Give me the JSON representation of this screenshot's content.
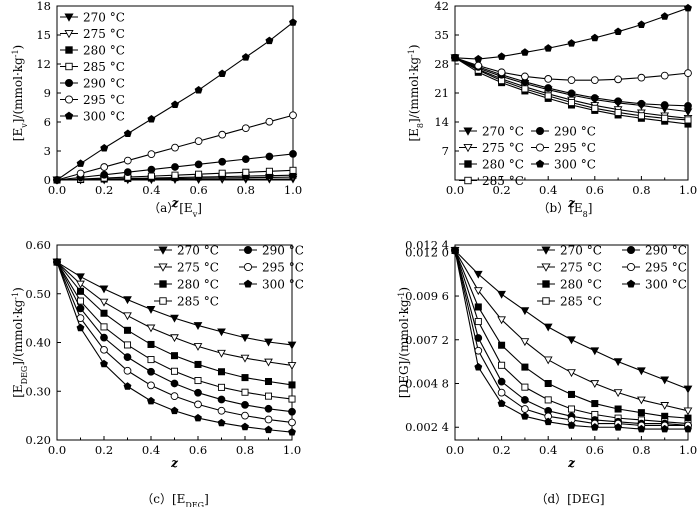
{
  "chart_data": [
    {
      "type": "line",
      "id": "a",
      "caption": "（a）[E",
      "caption_sub": "v",
      "caption_end": "]",
      "ylabel_main": "[E",
      "ylabel_sub": "v",
      "ylabel_units": "]/(mmol·kg",
      "ylabel_exp": "-1",
      "ylabel_close": ")",
      "xlabel": "z",
      "xlim": [
        0,
        1
      ],
      "ylim": [
        0,
        18
      ],
      "xticks": [
        "0.0",
        "0.2",
        "0.4",
        "0.6",
        "0.8",
        "1.0"
      ],
      "yticks": [
        "0",
        "3",
        "6",
        "9",
        "12",
        "15",
        "18"
      ],
      "ytick_values": [
        0,
        3,
        6,
        9,
        12,
        15,
        18
      ],
      "x": [
        0,
        0.1,
        0.2,
        0.3,
        0.4,
        0.5,
        0.6,
        0.7,
        0.8,
        0.9,
        1.0
      ],
      "series": [
        {
          "name": "270 °C",
          "marker": "triangle-down-filled",
          "values": [
            0,
            0.01,
            0.02,
            0.03,
            0.04,
            0.05,
            0.06,
            0.07,
            0.08,
            0.09,
            0.1
          ]
        },
        {
          "name": "275 °C",
          "marker": "triangle-down-open",
          "values": [
            0,
            0.03,
            0.06,
            0.09,
            0.12,
            0.15,
            0.18,
            0.21,
            0.24,
            0.27,
            0.3
          ]
        },
        {
          "name": "280 °C",
          "marker": "square-filled",
          "values": [
            0,
            0.05,
            0.1,
            0.15,
            0.2,
            0.25,
            0.3,
            0.35,
            0.4,
            0.45,
            0.5
          ]
        },
        {
          "name": "285 °C",
          "marker": "square-open",
          "values": [
            0,
            0.1,
            0.2,
            0.3,
            0.4,
            0.5,
            0.6,
            0.7,
            0.8,
            0.9,
            1.0
          ]
        },
        {
          "name": "290 °C",
          "marker": "circle-filled",
          "values": [
            0,
            0.27,
            0.54,
            0.81,
            1.08,
            1.35,
            1.62,
            1.89,
            2.16,
            2.43,
            2.7
          ]
        },
        {
          "name": "295 °C",
          "marker": "circle-open",
          "values": [
            0,
            0.67,
            1.34,
            2.01,
            2.68,
            3.35,
            4.02,
            4.69,
            5.36,
            6.03,
            6.7
          ]
        },
        {
          "name": "300 °C",
          "marker": "pentagon-filled",
          "values": [
            0,
            1.7,
            3.3,
            4.8,
            6.3,
            7.8,
            9.3,
            11.0,
            12.7,
            14.4,
            16.3
          ]
        }
      ],
      "legend": "top-left"
    },
    {
      "type": "line",
      "id": "b",
      "caption": "（b）[E",
      "caption_sub": "8",
      "caption_end": "]",
      "ylabel_main": "[E",
      "ylabel_sub": "8",
      "ylabel_units": "]/(mmol·kg",
      "ylabel_exp": "-1",
      "ylabel_close": ")",
      "xlabel": "z",
      "xlim": [
        0,
        1
      ],
      "ylim": [
        0,
        42
      ],
      "xticks": [
        "0.0",
        "0.2",
        "0.4",
        "0.6",
        "0.8",
        "1.0"
      ],
      "yticks": [
        "7",
        "14",
        "21",
        "28",
        "35",
        "42"
      ],
      "ytick_values": [
        7,
        14,
        21,
        28,
        35,
        42
      ],
      "x": [
        0,
        0.1,
        0.2,
        0.3,
        0.4,
        0.5,
        0.6,
        0.7,
        0.8,
        0.9,
        1.0
      ],
      "series": [
        {
          "name": "270 °C",
          "marker": "triangle-down-filled",
          "values": [
            29.5,
            27.0,
            25.0,
            23.3,
            21.8,
            20.5,
            19.4,
            18.6,
            18.0,
            17.2,
            16.5
          ]
        },
        {
          "name": "275 °C",
          "marker": "triangle-down-open",
          "values": [
            29.5,
            26.7,
            24.4,
            22.5,
            20.8,
            19.3,
            18.0,
            17.0,
            16.2,
            15.5,
            14.9
          ]
        },
        {
          "name": "280 °C",
          "marker": "square-filled",
          "values": [
            29.5,
            26.0,
            23.5,
            21.5,
            19.7,
            18.1,
            16.8,
            15.7,
            14.9,
            14.2,
            13.5
          ]
        },
        {
          "name": "285 °C",
          "marker": "square-open",
          "values": [
            29.5,
            26.5,
            24.0,
            22.0,
            20.3,
            18.7,
            17.3,
            16.3,
            15.5,
            14.9,
            14.5
          ]
        },
        {
          "name": "290 °C",
          "marker": "circle-filled",
          "values": [
            29.5,
            27.3,
            25.4,
            23.7,
            22.2,
            20.9,
            19.8,
            19.0,
            18.4,
            18.1,
            17.9
          ]
        },
        {
          "name": "295 °C",
          "marker": "circle-open",
          "values": [
            29.5,
            27.6,
            26.0,
            25.0,
            24.4,
            24.1,
            24.1,
            24.3,
            24.7,
            25.2,
            25.8
          ]
        },
        {
          "name": "300 °C",
          "marker": "pentagon-filled",
          "values": [
            29.5,
            29.2,
            29.8,
            30.8,
            31.8,
            33.0,
            34.3,
            35.8,
            37.5,
            39.5,
            41.5
          ]
        }
      ],
      "legend": "bottom-left"
    },
    {
      "type": "line",
      "id": "c",
      "caption": "（c）[E",
      "caption_sub": "DEG",
      "caption_end": "]",
      "ylabel_main": "[E",
      "ylabel_sub": "DEG",
      "ylabel_units": "]/(mmol·kg",
      "ylabel_exp": "-1",
      "ylabel_close": ")",
      "xlabel": "z",
      "xlim": [
        0,
        1
      ],
      "ylim": [
        0.2,
        0.6
      ],
      "xticks": [
        "0.0",
        "0.2",
        "0.4",
        "0.6",
        "0.8",
        "1.0"
      ],
      "yticks": [
        "0.20",
        "0.30",
        "0.40",
        "0.50",
        "0.60"
      ],
      "ytick_values": [
        0.2,
        0.3,
        0.4,
        0.5,
        0.6
      ],
      "x": [
        0,
        0.1,
        0.2,
        0.3,
        0.4,
        0.5,
        0.6,
        0.7,
        0.8,
        0.9,
        1.0
      ],
      "series": [
        {
          "name": "270 °C",
          "marker": "triangle-down-filled",
          "values": [
            0.565,
            0.535,
            0.51,
            0.488,
            0.468,
            0.45,
            0.435,
            0.422,
            0.41,
            0.401,
            0.395
          ]
        },
        {
          "name": "275 °C",
          "marker": "triangle-down-open",
          "values": [
            0.565,
            0.52,
            0.483,
            0.455,
            0.43,
            0.41,
            0.392,
            0.378,
            0.368,
            0.36,
            0.353
          ]
        },
        {
          "name": "280 °C",
          "marker": "square-filled",
          "values": [
            0.565,
            0.505,
            0.46,
            0.425,
            0.396,
            0.373,
            0.355,
            0.34,
            0.328,
            0.32,
            0.313
          ]
        },
        {
          "name": "285 °C",
          "marker": "square-open",
          "values": [
            0.565,
            0.485,
            0.432,
            0.395,
            0.365,
            0.341,
            0.322,
            0.308,
            0.298,
            0.29,
            0.284
          ]
        },
        {
          "name": "290 °C",
          "marker": "circle-filled",
          "values": [
            0.565,
            0.47,
            0.41,
            0.37,
            0.34,
            0.316,
            0.297,
            0.283,
            0.272,
            0.264,
            0.258
          ]
        },
        {
          "name": "295 °C",
          "marker": "circle-open",
          "values": [
            0.565,
            0.45,
            0.385,
            0.342,
            0.312,
            0.29,
            0.273,
            0.26,
            0.25,
            0.242,
            0.236
          ]
        },
        {
          "name": "300 °C",
          "marker": "pentagon-filled",
          "values": [
            0.565,
            0.43,
            0.356,
            0.31,
            0.28,
            0.26,
            0.245,
            0.235,
            0.227,
            0.221,
            0.216
          ]
        }
      ],
      "legend": "top-right"
    },
    {
      "type": "line",
      "id": "d",
      "caption": "（d）[DEG]",
      "caption_sub": "",
      "caption_end": "",
      "ylabel_main": "[DEG]/(mmol·kg",
      "ylabel_sub": "",
      "ylabel_units": "",
      "ylabel_exp": "-1",
      "ylabel_close": ")",
      "xlabel": "z",
      "xlim": [
        0,
        1
      ],
      "ylim": [
        0.0017,
        0.0124
      ],
      "xticks": [
        "0.0",
        "0.2",
        "0.4",
        "0.6",
        "0.8",
        "1.0"
      ],
      "yticks": [
        "0.002 4",
        "0.004 8",
        "0.007 2",
        "0.009 6",
        "0.012 0"
      ],
      "ytick_values": [
        0.0024,
        0.0048,
        0.0072,
        0.0096,
        0.012
      ],
      "top_tick_label": "0.012 4",
      "x": [
        0,
        0.1,
        0.2,
        0.3,
        0.4,
        0.5,
        0.6,
        0.7,
        0.8,
        0.9,
        1.0
      ],
      "series": [
        {
          "name": "270 °C",
          "marker": "triangle-down-filled",
          "values": [
            0.0121,
            0.0108,
            0.0097,
            0.0088,
            0.0079,
            0.0072,
            0.0066,
            0.006,
            0.0055,
            0.005,
            0.0045
          ]
        },
        {
          "name": "275 °C",
          "marker": "triangle-down-open",
          "values": [
            0.0121,
            0.0099,
            0.0083,
            0.0071,
            0.0061,
            0.0054,
            0.0048,
            0.0043,
            0.0039,
            0.0036,
            0.0033
          ]
        },
        {
          "name": "280 °C",
          "marker": "square-filled",
          "values": [
            0.0121,
            0.009,
            0.0069,
            0.0057,
            0.0048,
            0.0042,
            0.0037,
            0.0034,
            0.0032,
            0.003,
            0.0029
          ]
        },
        {
          "name": "285 °C",
          "marker": "square-open",
          "values": [
            0.0121,
            0.0082,
            0.0058,
            0.0046,
            0.0039,
            0.0034,
            0.0031,
            0.0029,
            0.0028,
            0.0027,
            0.0026
          ]
        },
        {
          "name": "290 °C",
          "marker": "circle-filled",
          "values": [
            0.0121,
            0.0073,
            0.0049,
            0.0039,
            0.0033,
            0.003,
            0.0028,
            0.0027,
            0.0026,
            0.0026,
            0.0025
          ]
        },
        {
          "name": "295 °C",
          "marker": "circle-open",
          "values": [
            0.0121,
            0.0066,
            0.0043,
            0.0034,
            0.003,
            0.0028,
            0.0026,
            0.0026,
            0.0025,
            0.0025,
            0.0025
          ]
        },
        {
          "name": "300 °C",
          "marker": "pentagon-filled",
          "values": [
            0.0121,
            0.0057,
            0.0037,
            0.003,
            0.0027,
            0.0025,
            0.0024,
            0.0024,
            0.0023,
            0.0023,
            0.0023
          ]
        }
      ],
      "legend": "top-right"
    }
  ]
}
